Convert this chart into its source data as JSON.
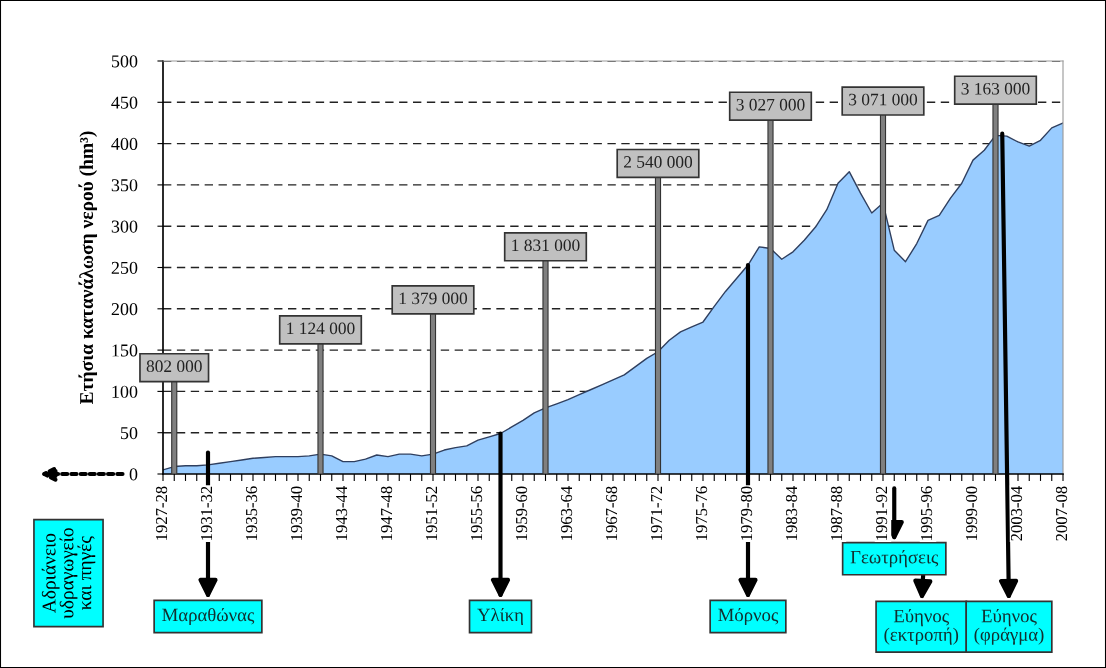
{
  "chart_data": {
    "type": "area",
    "ylabel": "Ετήσια κατανάλωση νερού (hm³)",
    "categories": [
      "1927-28",
      null,
      null,
      null,
      "1931-32",
      null,
      null,
      null,
      "1935-36",
      null,
      null,
      null,
      "1939-40",
      null,
      null,
      null,
      "1943-44",
      null,
      null,
      null,
      "1947-48",
      null,
      null,
      null,
      "1951-52",
      null,
      null,
      null,
      "1955-56",
      null,
      null,
      null,
      "1959-60",
      null,
      null,
      null,
      "1963-64",
      null,
      null,
      null,
      "1967-68",
      null,
      null,
      null,
      "1971-72",
      null,
      null,
      null,
      "1975-76",
      null,
      null,
      null,
      "1979-80",
      null,
      null,
      null,
      "1983-84",
      null,
      null,
      null,
      "1987-88",
      null,
      null,
      null,
      "1991-92",
      null,
      null,
      null,
      "1995-96",
      null,
      null,
      null,
      "1999-00",
      null,
      null,
      null,
      "2003-04",
      null,
      null,
      null,
      "2007-08"
    ],
    "series": [
      {
        "color": "#99ccff",
        "values": [
          5,
          9,
          10,
          10,
          11,
          13,
          15,
          17,
          19,
          20,
          21,
          21,
          21,
          22,
          24,
          22,
          15,
          15,
          18,
          23,
          21,
          24,
          24,
          22,
          24,
          29,
          32,
          34,
          41,
          45,
          49,
          57,
          65,
          74,
          80,
          85,
          90,
          96,
          102,
          108,
          114,
          120,
          130,
          140,
          148,
          162,
          172,
          178,
          184,
          203,
          221,
          237,
          253,
          275,
          273,
          260,
          269,
          283,
          299,
          320,
          352,
          366,
          340,
          316,
          328,
          271,
          257,
          279,
          307,
          313,
          334,
          352,
          380,
          392,
          410,
          409,
          402,
          397,
          404,
          419,
          425
        ]
      },
      {
        "type": "bar",
        "axis": "y2",
        "color": "#808080",
        "values": [
          null,
          802000,
          null,
          null,
          null,
          null,
          null,
          null,
          null,
          null,
          null,
          null,
          null,
          null,
          1124000,
          null,
          null,
          null,
          null,
          null,
          null,
          null,
          null,
          null,
          1379000,
          null,
          null,
          null,
          null,
          null,
          null,
          null,
          null,
          null,
          1831000,
          null,
          null,
          null,
          null,
          null,
          null,
          null,
          null,
          null,
          2540000,
          null,
          null,
          null,
          null,
          null,
          null,
          null,
          null,
          null,
          3027000,
          null,
          null,
          null,
          null,
          null,
          null,
          null,
          null,
          null,
          3071000,
          null,
          null,
          null,
          null,
          null,
          null,
          null,
          null,
          null,
          3163000,
          null,
          null,
          null,
          null,
          null,
          null
        ],
        "value_labels": [
          null,
          "802 000",
          null,
          null,
          null,
          null,
          null,
          null,
          null,
          null,
          null,
          null,
          null,
          null,
          "1 124 000",
          null,
          null,
          null,
          null,
          null,
          null,
          null,
          null,
          null,
          "1 379 000",
          null,
          null,
          null,
          null,
          null,
          null,
          null,
          null,
          null,
          "1 831 000",
          null,
          null,
          null,
          null,
          null,
          null,
          null,
          null,
          null,
          "2 540 000",
          null,
          null,
          null,
          null,
          null,
          null,
          null,
          null,
          null,
          "3 027 000",
          null,
          null,
          null,
          null,
          null,
          null,
          null,
          null,
          null,
          "3 071 000",
          null,
          null,
          null,
          null,
          null,
          null,
          null,
          null,
          null,
          "3 163 000",
          null,
          null,
          null,
          null,
          null,
          null
        ]
      }
    ],
    "annotations": [
      "Αδριάνειο\nυδραγωγείο\nκαι πηγές",
      "Μαραθώνας",
      "Υλίκη",
      "Μόρνος",
      "Γεωτρήσεις",
      "Εύηνος\n(εκτροπή)",
      "Εύηνος\n(φράγμα)"
    ],
    "ylim": [
      0,
      500
    ],
    "yticks": [
      0,
      50,
      100,
      150,
      200,
      250,
      300,
      350,
      400,
      450,
      500
    ],
    "grid": "y",
    "legend": false
  }
}
